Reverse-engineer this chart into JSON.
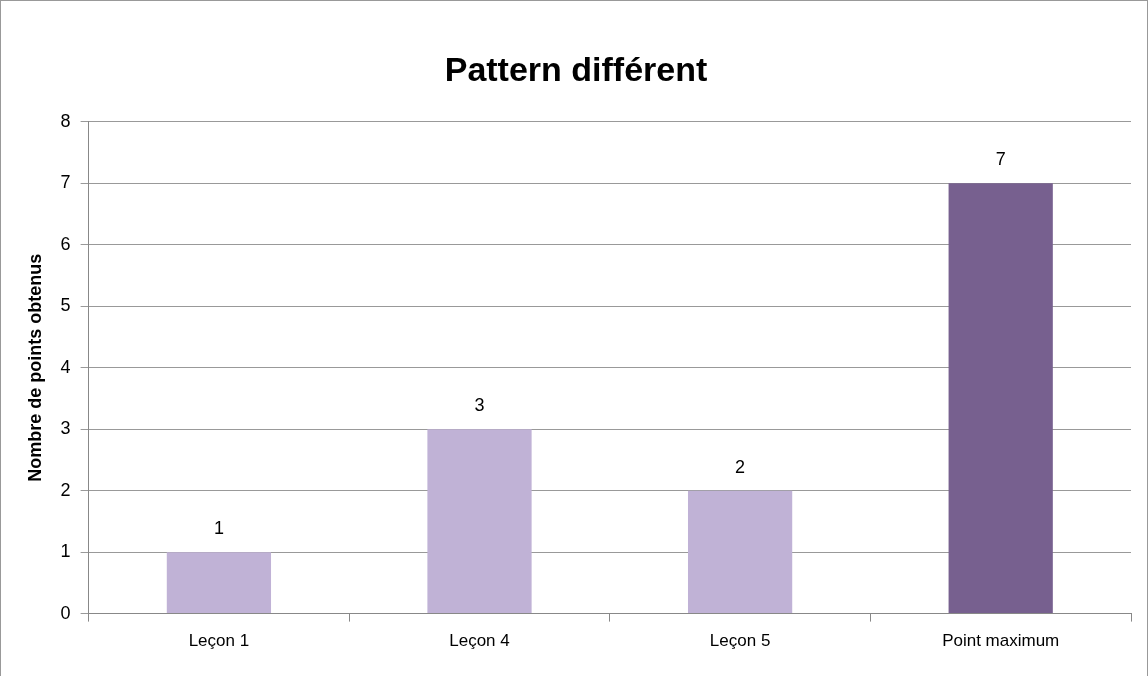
{
  "chart_data": {
    "type": "bar",
    "title": "Pattern différent",
    "ylabel": "Nombre de points obtenus",
    "categories": [
      "Leçon 1",
      "Leçon 4",
      "Leçon 5",
      "Point maximum"
    ],
    "values": [
      1,
      3,
      2,
      7
    ],
    "colors": [
      "#c0b2d6",
      "#c0b2d6",
      "#c0b2d6",
      "#77608f"
    ],
    "ylim": [
      0,
      8
    ],
    "yticks": [
      0,
      1,
      2,
      3,
      4,
      5,
      6,
      7,
      8
    ],
    "grid": "y",
    "data_labels": true,
    "legend": false
  }
}
